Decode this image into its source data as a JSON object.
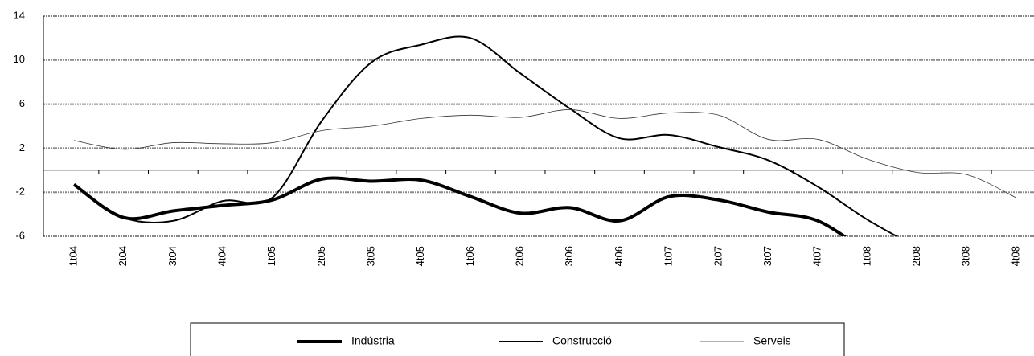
{
  "chart_data": {
    "type": "line",
    "categories": [
      "1t04",
      "2t04",
      "3t04",
      "4t04",
      "1t05",
      "2t05",
      "3t05",
      "4t05",
      "1t06",
      "2t06",
      "3t06",
      "4t06",
      "1t07",
      "2t07",
      "3t07",
      "4t07",
      "1t08",
      "2t08",
      "3t08",
      "4t08"
    ],
    "series": [
      {
        "name": "Indústria",
        "color": "#000000",
        "values": [
          -1.3,
          -4.3,
          -3.7,
          -3.2,
          -2.7,
          -0.8,
          -1.0,
          -0.9,
          -2.4,
          -3.9,
          -3.4,
          -4.6,
          -2.4,
          -2.7,
          -3.8,
          -4.6,
          -7.5,
          null,
          null,
          null
        ]
      },
      {
        "name": "Construcció",
        "color": "#000000",
        "values": [
          -1.3,
          -4.3,
          -4.6,
          -2.8,
          -2.5,
          4.5,
          9.8,
          11.4,
          12.0,
          8.8,
          5.6,
          2.9,
          3.2,
          2.1,
          0.9,
          -1.5,
          -4.5,
          -7.0,
          null,
          null
        ]
      },
      {
        "name": "Serveis",
        "color": "#333333",
        "values": [
          2.7,
          1.9,
          2.5,
          2.4,
          2.5,
          3.6,
          4.0,
          4.7,
          5.0,
          4.8,
          5.5,
          4.7,
          5.2,
          5.0,
          2.8,
          2.8,
          1.0,
          -0.2,
          -0.4,
          -2.5
        ]
      }
    ],
    "ylim": [
      -6,
      14
    ],
    "yticks": [
      -6,
      -2,
      2,
      6,
      10,
      14
    ],
    "grid": true,
    "legend": "bottom"
  }
}
